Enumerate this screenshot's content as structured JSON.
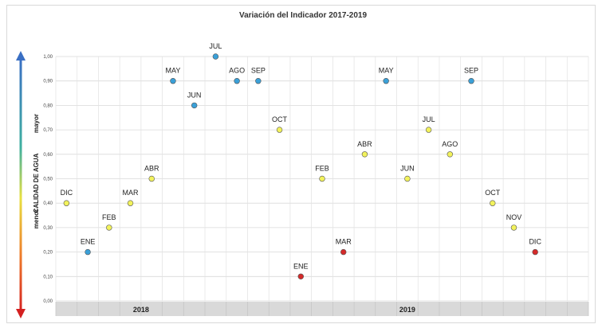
{
  "chart_data": {
    "type": "scatter",
    "title": "Variación del Indicador 2017-2019",
    "ylabel": "CALIDAD DE AGUA",
    "y_low_label": "menor",
    "y_high_label": "mayor",
    "ylim": [
      0,
      1
    ],
    "yticks": [
      "0,00",
      "0,10",
      "0,20",
      "0,30",
      "0,40",
      "0,50",
      "0,60",
      "0,70",
      "0,80",
      "0,90",
      "1,00"
    ],
    "grid": true,
    "years": [
      {
        "label": "2018",
        "start": 0,
        "end": 8
      },
      {
        "label": "2019",
        "start": 8,
        "end": 25
      }
    ],
    "points": [
      {
        "label": "DIC",
        "value": 0.4,
        "color": "#f2f25c"
      },
      {
        "label": "ENE",
        "value": 0.2,
        "color": "#3aa0d8"
      },
      {
        "label": "FEB",
        "value": 0.3,
        "color": "#f2f25c"
      },
      {
        "label": "MAR",
        "value": 0.4,
        "color": "#f2f25c"
      },
      {
        "label": "ABR",
        "value": 0.5,
        "color": "#f2f25c"
      },
      {
        "label": "MAY",
        "value": 0.9,
        "color": "#3aa0d8"
      },
      {
        "label": "JUN",
        "value": 0.8,
        "color": "#3aa0d8"
      },
      {
        "label": "JUL",
        "value": 1.0,
        "color": "#3aa0d8"
      },
      {
        "label": "AGO",
        "value": 0.9,
        "color": "#3aa0d8"
      },
      {
        "label": "SEP",
        "value": 0.9,
        "color": "#3aa0d8"
      },
      {
        "label": "OCT",
        "value": 0.7,
        "color": "#f2f25c"
      },
      {
        "label": "ENE",
        "value": 0.1,
        "color": "#d42a2a"
      },
      {
        "label": "FEB",
        "value": 0.5,
        "color": "#f2f25c"
      },
      {
        "label": "MAR",
        "value": 0.2,
        "color": "#d42a2a"
      },
      {
        "label": "ABR",
        "value": 0.6,
        "color": "#f2f25c"
      },
      {
        "label": "MAY",
        "value": 0.9,
        "color": "#3aa0d8"
      },
      {
        "label": "JUN",
        "value": 0.5,
        "color": "#f2f25c"
      },
      {
        "label": "JUL",
        "value": 0.7,
        "color": "#f2f25c"
      },
      {
        "label": "AGO",
        "value": 0.6,
        "color": "#f2f25c"
      },
      {
        "label": "SEP",
        "value": 0.9,
        "color": "#3aa0d8"
      },
      {
        "label": "OCT",
        "value": 0.4,
        "color": "#f2f25c"
      },
      {
        "label": "NOV",
        "value": 0.3,
        "color": "#f2f25c"
      },
      {
        "label": "DIC",
        "value": 0.2,
        "color": "#d42a2a"
      }
    ]
  }
}
